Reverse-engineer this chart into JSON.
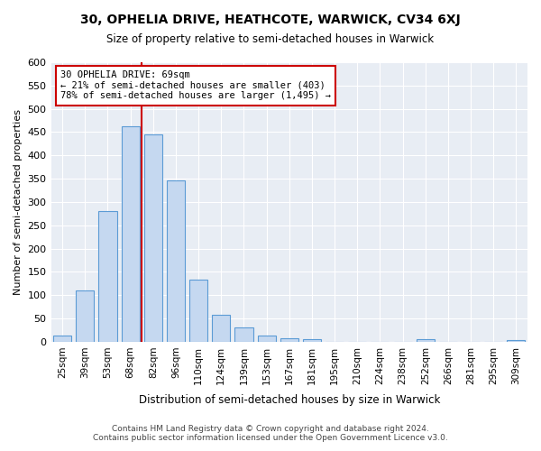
{
  "title": "30, OPHELIA DRIVE, HEATHCOTE, WARWICK, CV34 6XJ",
  "subtitle": "Size of property relative to semi-detached houses in Warwick",
  "xlabel": "Distribution of semi-detached houses by size in Warwick",
  "ylabel": "Number of semi-detached properties",
  "footer_line1": "Contains HM Land Registry data © Crown copyright and database right 2024.",
  "footer_line2": "Contains public sector information licensed under the Open Government Licence v3.0.",
  "bar_labels": [
    "25sqm",
    "39sqm",
    "53sqm",
    "68sqm",
    "82sqm",
    "96sqm",
    "110sqm",
    "124sqm",
    "139sqm",
    "153sqm",
    "167sqm",
    "181sqm",
    "195sqm",
    "210sqm",
    "224sqm",
    "238sqm",
    "252sqm",
    "266sqm",
    "281sqm",
    "295sqm",
    "309sqm"
  ],
  "bar_values": [
    13,
    110,
    280,
    462,
    445,
    347,
    133,
    57,
    30,
    13,
    8,
    5,
    0,
    0,
    0,
    0,
    5,
    0,
    0,
    0,
    3
  ],
  "bar_color": "#c5d8f0",
  "bar_edge_color": "#5b9bd5",
  "property_label": "30 OPHELIA DRIVE: 69sqm",
  "pct_smaller": 21,
  "count_smaller": 403,
  "pct_larger": 78,
  "count_larger": 1495,
  "vline_x": 3.5,
  "vline_color": "#cc0000",
  "annotation_box_edge_color": "#cc0000",
  "ylim": [
    0,
    600
  ],
  "yticks": [
    0,
    50,
    100,
    150,
    200,
    250,
    300,
    350,
    400,
    450,
    500,
    550,
    600
  ],
  "bg_color": "#e8edf4",
  "fig_bg_color": "#ffffff"
}
